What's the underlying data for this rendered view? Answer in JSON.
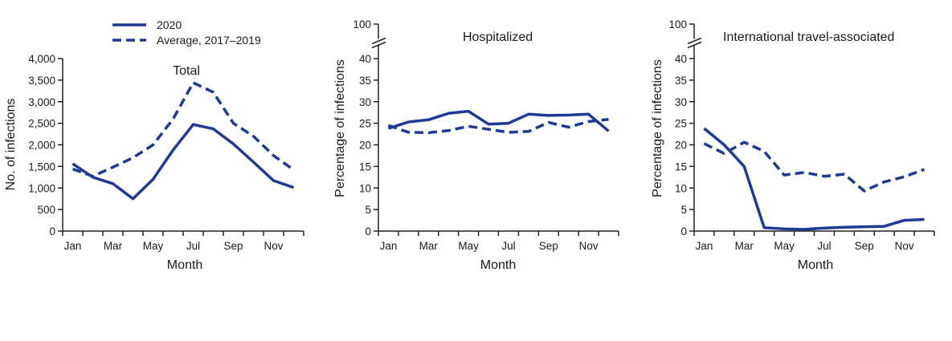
{
  "legend": {
    "items": [
      {
        "label": "2020",
        "style": "solid"
      },
      {
        "label": "Average, 2017–2019",
        "style": "dashed"
      }
    ]
  },
  "colors": {
    "series": "#1f3a93",
    "axis": "#222222",
    "background": "#ffffff"
  },
  "chart_data": [
    {
      "type": "line",
      "title": "Total",
      "xlabel": "Month",
      "ylabel": "No. of infections",
      "categories": [
        "Jan",
        "Feb",
        "Mar",
        "Apr",
        "May",
        "Jun",
        "Jul",
        "Aug",
        "Sep",
        "Oct",
        "Nov",
        "Dec"
      ],
      "x_tick_labels": [
        "Jan",
        "Mar",
        "May",
        "Jul",
        "Sep",
        "Nov"
      ],
      "ylim": [
        0,
        4000
      ],
      "y_ticks": [
        0,
        500,
        1000,
        1500,
        2000,
        2500,
        3000,
        3500,
        4000
      ],
      "y_tick_labels": [
        "0",
        "500",
        "1,000",
        "1,500",
        "2,000",
        "2,500",
        "3,000",
        "3,500",
        "4,000"
      ],
      "axis_break": false,
      "series": [
        {
          "name": "2020",
          "style": "solid",
          "values": [
            1560,
            1250,
            1100,
            750,
            1200,
            1880,
            2470,
            2370,
            2020,
            1600,
            1170,
            1010
          ]
        },
        {
          "name": "Average, 2017–2019",
          "style": "dashed",
          "values": [
            1440,
            1270,
            1480,
            1700,
            2000,
            2600,
            3440,
            3220,
            2500,
            2200,
            1750,
            1420
          ]
        }
      ],
      "grid": false
    },
    {
      "type": "line",
      "title": "Hospitalized",
      "xlabel": "Month",
      "ylabel": "Percentage of infections",
      "categories": [
        "Jan",
        "Feb",
        "Mar",
        "Apr",
        "May",
        "Jun",
        "Jul",
        "Aug",
        "Sep",
        "Oct",
        "Nov",
        "Dec"
      ],
      "x_tick_labels": [
        "Jan",
        "Mar",
        "May",
        "Jul",
        "Sep",
        "Nov"
      ],
      "ylim": [
        0,
        40
      ],
      "y_ticks": [
        0,
        5,
        10,
        15,
        20,
        25,
        30,
        35,
        40
      ],
      "y_tick_labels": [
        "0",
        "5",
        "10",
        "15",
        "20",
        "25",
        "30",
        "35",
        "40"
      ],
      "axis_break": true,
      "break_top_label": "100",
      "series": [
        {
          "name": "2020",
          "style": "solid",
          "values": [
            23.8,
            25.3,
            25.8,
            27.3,
            27.8,
            24.8,
            25.0,
            27.1,
            26.8,
            26.9,
            27.1,
            23.2
          ]
        },
        {
          "name": "Average, 2017–2019",
          "style": "dashed",
          "values": [
            24.5,
            22.9,
            22.8,
            23.3,
            24.3,
            23.6,
            22.9,
            23.1,
            25.2,
            24.1,
            25.4,
            25.9
          ]
        }
      ],
      "grid": false
    },
    {
      "type": "line",
      "title": "International travel-associated",
      "xlabel": "Month",
      "ylabel": "Percentage of infections",
      "categories": [
        "Jan",
        "Feb",
        "Mar",
        "Apr",
        "May",
        "Jun",
        "Jul",
        "Aug",
        "Sep",
        "Oct",
        "Nov",
        "Dec"
      ],
      "x_tick_labels": [
        "Jan",
        "Mar",
        "May",
        "Jul",
        "Sep",
        "Nov"
      ],
      "ylim": [
        0,
        40
      ],
      "y_ticks": [
        0,
        5,
        10,
        15,
        20,
        25,
        30,
        35,
        40
      ],
      "y_tick_labels": [
        "0",
        "5",
        "10",
        "15",
        "20",
        "25",
        "30",
        "35",
        "40"
      ],
      "axis_break": true,
      "break_top_label": "100",
      "series": [
        {
          "name": "2020",
          "style": "solid",
          "values": [
            23.8,
            20.0,
            15.0,
            0.8,
            0.5,
            0.4,
            0.7,
            0.9,
            1.0,
            1.1,
            2.5,
            2.7
          ]
        },
        {
          "name": "Average, 2017–2019",
          "style": "dashed",
          "values": [
            20.3,
            18.0,
            20.6,
            18.5,
            13.0,
            13.6,
            12.7,
            13.2,
            9.3,
            11.4,
            12.6,
            14.3
          ]
        }
      ],
      "grid": false
    }
  ]
}
